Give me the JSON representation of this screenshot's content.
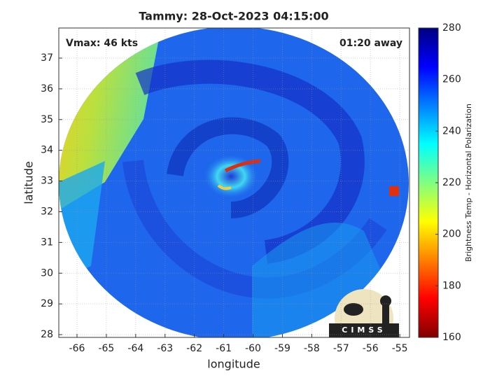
{
  "chart_data": {
    "type": "heatmap",
    "title": "Tammy: 28-Oct-2023 04:15:00",
    "annotations": [
      "Vmax: 46 kts",
      "01:20 away"
    ],
    "x_label": "longitude",
    "y_label": "latitude",
    "xlim": [
      -66.62,
      -54.67
    ],
    "xticks": [
      -66,
      -65,
      -64,
      -63,
      -62,
      -61,
      -60,
      -59,
      -58,
      -57,
      -56,
      -55
    ],
    "ylim": [
      27.91,
      37.98
    ],
    "yticks": [
      28,
      29,
      30,
      31,
      32,
      33,
      34,
      35,
      36,
      37
    ],
    "grid": true,
    "colorbar": {
      "label": "Brightness Temp - Horizontal Polarization",
      "lim": [
        160,
        280
      ],
      "ticks": [
        160,
        180,
        200,
        220,
        240,
        260,
        280
      ],
      "colors": [
        "#800000",
        "#ff0000",
        "#ff8000",
        "#ffff00",
        "#80ff80",
        "#00ffff",
        "#0080ff",
        "#0000ff",
        "#000080"
      ]
    },
    "logo_text": "CIMSS"
  }
}
